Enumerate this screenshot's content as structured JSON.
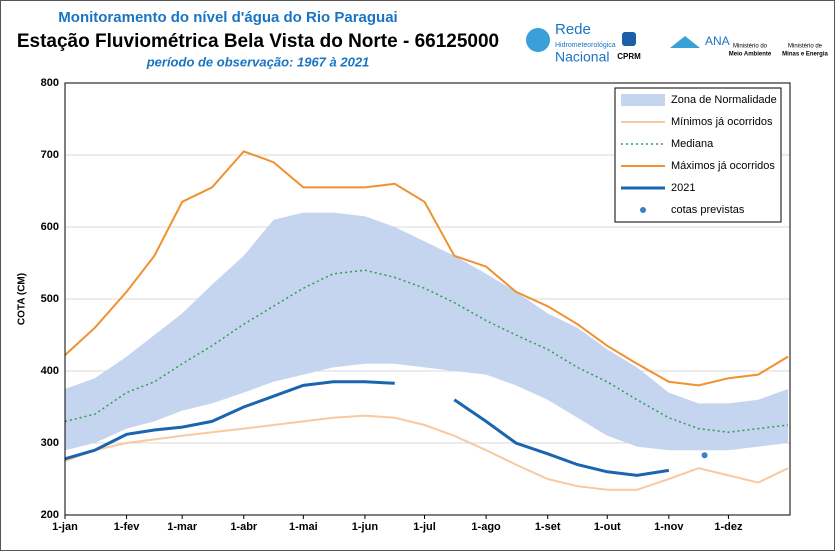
{
  "chart_data": {
    "type": "line",
    "title": "Monitoramento do nível d'água do Rio Paraguai",
    "subtitle": "Estação Fluviométrica Bela Vista do Norte - 66125000",
    "period": "período de observação: 1967 à 2021",
    "logos": [
      "Rede",
      "Hidrometeorológica",
      "Nacional",
      "CPRM",
      "ANA",
      "Ministério do",
      "Meio Ambiente",
      "Ministério de",
      "Minas e Energia"
    ],
    "ylabel": "COTA (CM)",
    "xlim": [
      0,
      365
    ],
    "xticks": [
      {
        "value": 0,
        "label": "1-jan"
      },
      {
        "value": 31,
        "label": "1-fev"
      },
      {
        "value": 59,
        "label": "1-mar"
      },
      {
        "value": 90,
        "label": "1-abr"
      },
      {
        "value": 120,
        "label": "1-mai"
      },
      {
        "value": 151,
        "label": "1-jun"
      },
      {
        "value": 181,
        "label": "1-jul"
      },
      {
        "value": 212,
        "label": "1-ago"
      },
      {
        "value": 243,
        "label": "1-set"
      },
      {
        "value": 273,
        "label": "1-out"
      },
      {
        "value": 304,
        "label": "1-nov"
      },
      {
        "value": 334,
        "label": "1-dez"
      }
    ],
    "ylim": [
      200,
      800
    ],
    "yticks": [
      200,
      300,
      400,
      500,
      600,
      700,
      800
    ],
    "grid": true,
    "legend": "upper right",
    "x": [
      0,
      15,
      31,
      45,
      59,
      74,
      90,
      105,
      120,
      135,
      151,
      166,
      181,
      196,
      212,
      227,
      243,
      258,
      273,
      288,
      304,
      319,
      334,
      349,
      364
    ],
    "band": {
      "name": "Zona de Normalidade",
      "color": "#c5d5ef",
      "lower": [
        290,
        300,
        320,
        330,
        345,
        355,
        370,
        385,
        395,
        405,
        410,
        410,
        405,
        400,
        395,
        380,
        360,
        335,
        310,
        295,
        290,
        290,
        290,
        295,
        300
      ],
      "upper": [
        375,
        390,
        420,
        450,
        480,
        520,
        560,
        610,
        620,
        620,
        615,
        600,
        580,
        560,
        535,
        510,
        480,
        460,
        430,
        405,
        370,
        355,
        355,
        360,
        375
      ]
    },
    "series": [
      {
        "name": "Mínimos já ocorridos",
        "color": "#f9c9a0",
        "style": "solid",
        "values": [
          275,
          290,
          300,
          305,
          310,
          315,
          320,
          325,
          330,
          335,
          338,
          335,
          325,
          310,
          290,
          270,
          250,
          240,
          235,
          235,
          250,
          265,
          255,
          245,
          265
        ]
      },
      {
        "name": "Mediana",
        "color": "#2e9e4f",
        "style": "dotted",
        "values": [
          330,
          340,
          370,
          385,
          410,
          435,
          465,
          490,
          515,
          535,
          540,
          530,
          515,
          495,
          470,
          450,
          430,
          405,
          385,
          360,
          335,
          320,
          315,
          320,
          325
        ]
      },
      {
        "name": "Máximos já ocorridos",
        "color": "#f0902e",
        "style": "solid",
        "values": [
          422,
          460,
          510,
          560,
          635,
          655,
          705,
          690,
          655,
          655,
          655,
          660,
          635,
          560,
          545,
          510,
          490,
          465,
          435,
          410,
          385,
          380,
          390,
          395,
          420
        ]
      },
      {
        "name": "2021",
        "color": "#1a65b0",
        "style": "thick",
        "values": [
          278,
          290,
          312,
          318,
          322,
          330,
          350,
          365,
          380,
          385,
          385,
          383,
          null,
          360,
          330,
          300,
          285,
          270,
          260,
          255,
          262,
          null,
          null,
          null,
          null
        ]
      }
    ],
    "forecast": {
      "name": "cotas previstas",
      "color": "#3a7fc4",
      "x": [
        322
      ],
      "values": [
        283
      ]
    }
  }
}
